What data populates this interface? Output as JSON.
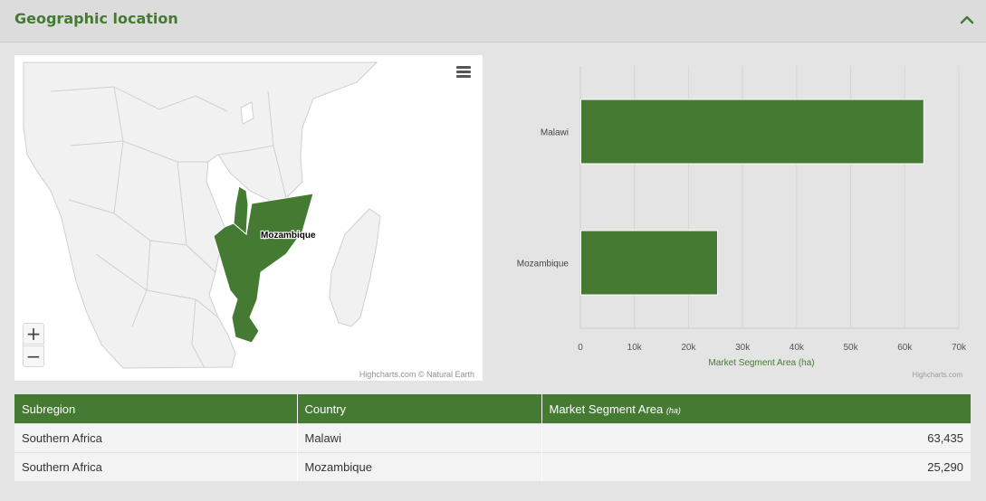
{
  "section": {
    "title": "Geographic location",
    "collapse_icon": "chevron-up-icon"
  },
  "map": {
    "label": "Mozambique",
    "credit": "Highcharts.com © Natural Earth",
    "zoom_in": "+",
    "zoom_out": "−",
    "highlight_color": "#447a32",
    "highlighted_countries": [
      "Malawi",
      "Mozambique"
    ]
  },
  "chart_data": {
    "type": "bar",
    "orientation": "horizontal",
    "categories": [
      "Malawi",
      "Mozambique"
    ],
    "values": [
      63435,
      25290
    ],
    "xlabel": "Market Segment Area (ha)",
    "xlim": [
      0,
      70000
    ],
    "ticks": [
      "0",
      "10k",
      "20k",
      "30k",
      "40k",
      "50k",
      "60k",
      "70k"
    ],
    "grid": true,
    "color": "#447a32",
    "credit": "Highcharts.com"
  },
  "table": {
    "headers": [
      "Subregion",
      "Country",
      "Market Segment Area"
    ],
    "unit": "(ha)",
    "rows": [
      [
        "Southern Africa",
        "Malawi",
        "63,435"
      ],
      [
        "Southern Africa",
        "Mozambique",
        "25,290"
      ]
    ]
  }
}
